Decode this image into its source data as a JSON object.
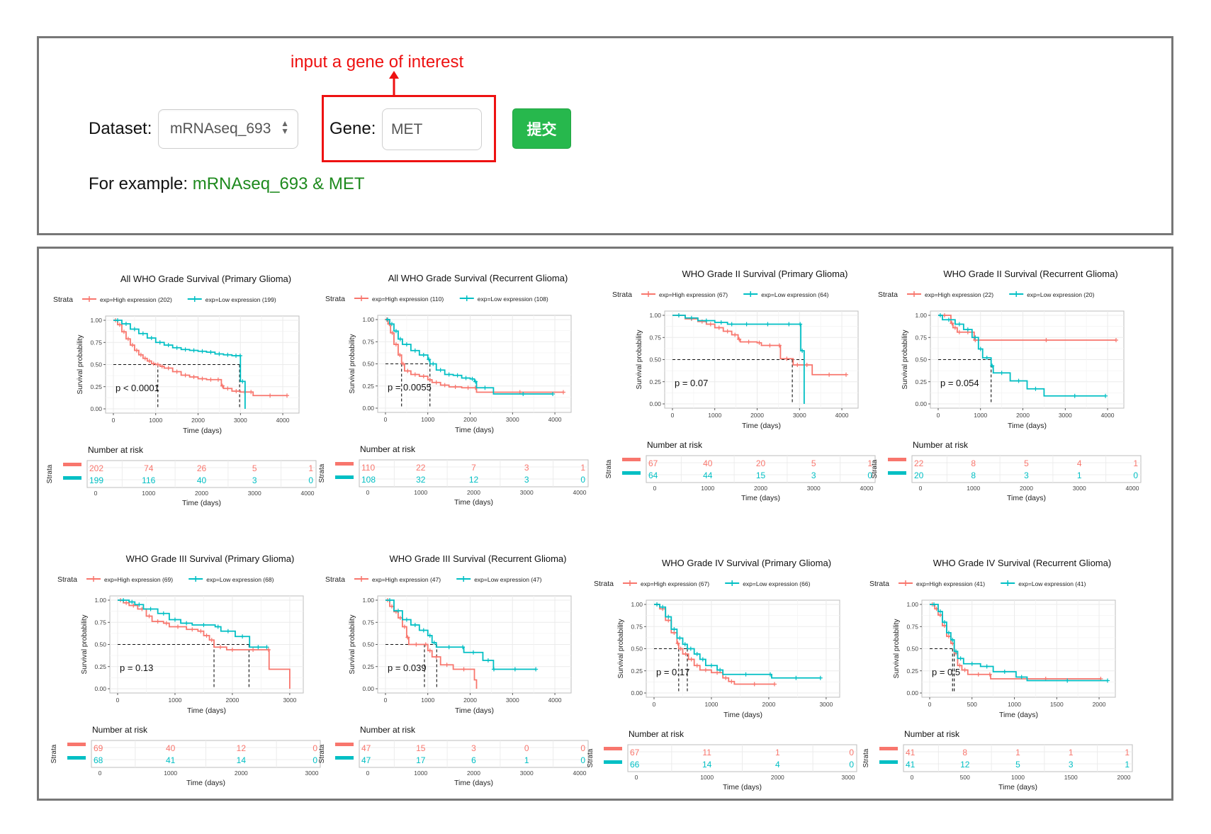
{
  "form": {
    "annotation": "input a gene of interest",
    "dataset_label": "Dataset:",
    "dataset_value": "mRNAseq_693",
    "gene_label": "Gene:",
    "gene_value": "MET",
    "submit_label": "提交",
    "example_prefix": "For example:",
    "example_value": "mRNAseq_693 & MET"
  },
  "colors": {
    "high": "#F8766D",
    "low": "#00BFC4",
    "annotation": "#EE1111",
    "submit": "#27B84D",
    "example": "#1E8A1E"
  },
  "common": {
    "strata_label": "Strata",
    "ylabel": "Survival probability",
    "xlabel": "Time (days)",
    "risk_title": "Number at risk",
    "yticks": [
      "0.00",
      "0.25",
      "0.50",
      "0.75",
      "1.00"
    ]
  },
  "chart_data": [
    {
      "type": "line",
      "title": "All WHO Grade Survival (Primary Glioma)",
      "legend": [
        "exp=High expression (202)",
        "exp=Low expression (199)"
      ],
      "xlim": [
        0,
        4200
      ],
      "ylim": [
        0,
        1
      ],
      "xticks": [
        0,
        1000,
        2000,
        3000,
        4000
      ],
      "pvalue": "p < 0.0001",
      "median": [
        1050,
        2980
      ],
      "series": [
        {
          "name": "exp=High expression (202)",
          "x": [
            0,
            100,
            200,
            300,
            400,
            500,
            600,
            700,
            800,
            900,
            1000,
            1100,
            1200,
            1400,
            1600,
            1800,
            2000,
            2200,
            2400,
            2550,
            2600,
            2800,
            3000,
            3200,
            3300,
            4100
          ],
          "y": [
            1.0,
            0.95,
            0.87,
            0.79,
            0.72,
            0.66,
            0.61,
            0.57,
            0.54,
            0.51,
            0.5,
            0.48,
            0.46,
            0.42,
            0.38,
            0.36,
            0.34,
            0.33,
            0.33,
            0.26,
            0.23,
            0.2,
            0.19,
            0.19,
            0.15,
            0.15
          ]
        },
        {
          "name": "exp=Low expression (199)",
          "x": [
            0,
            200,
            400,
            600,
            800,
            1000,
            1200,
            1400,
            1600,
            1800,
            2000,
            2200,
            2400,
            2600,
            2800,
            2990,
            3000,
            3100,
            3110
          ],
          "y": [
            1.0,
            0.96,
            0.9,
            0.85,
            0.8,
            0.75,
            0.72,
            0.69,
            0.67,
            0.66,
            0.65,
            0.64,
            0.62,
            0.61,
            0.6,
            0.6,
            0.31,
            0.31,
            0.0
          ]
        }
      ],
      "risk": {
        "x": [
          0,
          1000,
          2000,
          3000,
          4000
        ],
        "high": [
          "202",
          "74",
          "26",
          "5",
          "1"
        ],
        "low": [
          "199",
          "116",
          "40",
          "3",
          "0"
        ]
      }
    },
    {
      "type": "line",
      "title": "All WHO Grade Survival (Recurrent Glioma)",
      "legend": [
        "exp=High expression (110)",
        "exp=Low expression (108)"
      ],
      "xlim": [
        0,
        4200
      ],
      "ylim": [
        0,
        1
      ],
      "xticks": [
        0,
        1000,
        2000,
        3000,
        4000
      ],
      "pvalue": "p = 0.0055",
      "median": [
        380,
        1050
      ],
      "series": [
        {
          "name": "exp=High expression (110)",
          "x": [
            0,
            60,
            120,
            200,
            300,
            380,
            450,
            600,
            800,
            1000,
            1100,
            1300,
            1500,
            1800,
            2100,
            2150,
            4200
          ],
          "y": [
            1.0,
            0.95,
            0.85,
            0.72,
            0.6,
            0.5,
            0.42,
            0.38,
            0.36,
            0.32,
            0.29,
            0.26,
            0.24,
            0.23,
            0.23,
            0.18,
            0.18
          ]
        },
        {
          "name": "exp=Low expression (108)",
          "x": [
            0,
            100,
            200,
            300,
            400,
            600,
            800,
            1000,
            1050,
            1200,
            1400,
            1600,
            1800,
            2000,
            2100,
            2150,
            2550,
            3950
          ],
          "y": [
            1.0,
            0.95,
            0.87,
            0.78,
            0.72,
            0.65,
            0.6,
            0.55,
            0.5,
            0.43,
            0.38,
            0.37,
            0.34,
            0.33,
            0.3,
            0.23,
            0.16,
            0.16
          ]
        }
      ],
      "risk": {
        "x": [
          0,
          1000,
          2000,
          3000,
          4000
        ],
        "high": [
          "110",
          "22",
          "7",
          "3",
          "1"
        ],
        "low": [
          "108",
          "32",
          "12",
          "3",
          "0"
        ]
      }
    },
    {
      "type": "line",
      "title": "WHO Grade II Survival (Primary Glioma)",
      "legend": [
        "exp=High expression (67)",
        "exp=Low expression (64)"
      ],
      "xlim": [
        0,
        4200
      ],
      "ylim": [
        0,
        1
      ],
      "xticks": [
        0,
        1000,
        2000,
        3000,
        4000
      ],
      "pvalue": "p = 0.07",
      "median": [
        2830,
        3110
      ],
      "series": [
        {
          "name": "exp=High expression (67)",
          "x": [
            0,
            300,
            600,
            800,
            1000,
            1200,
            1400,
            1550,
            1600,
            2000,
            2100,
            2500,
            2550,
            2850,
            3050,
            3300,
            4100
          ],
          "y": [
            1.0,
            0.96,
            0.93,
            0.9,
            0.86,
            0.82,
            0.78,
            0.73,
            0.7,
            0.69,
            0.66,
            0.66,
            0.51,
            0.44,
            0.44,
            0.33,
            0.33
          ]
        },
        {
          "name": "exp=Low expression (64)",
          "x": [
            0,
            300,
            600,
            1000,
            1300,
            1500,
            2000,
            2500,
            3000,
            3030,
            3100,
            3110
          ],
          "y": [
            1.0,
            0.97,
            0.94,
            0.92,
            0.9,
            0.9,
            0.9,
            0.9,
            0.9,
            0.6,
            0.6,
            0.0
          ]
        }
      ],
      "risk": {
        "x": [
          0,
          1000,
          2000,
          3000,
          4000
        ],
        "high": [
          "67",
          "40",
          "20",
          "5",
          "1"
        ],
        "low": [
          "64",
          "44",
          "15",
          "3",
          "0"
        ]
      }
    },
    {
      "type": "line",
      "title": "WHO Grade II Survival (Recurrent Glioma)",
      "legend": [
        "exp=High expression (22)",
        "exp=Low expression (20)"
      ],
      "xlim": [
        0,
        4200
      ],
      "ylim": [
        0,
        1
      ],
      "xticks": [
        0,
        1000,
        2000,
        3000,
        4000
      ],
      "pvalue": "p = 0.054",
      "median": [
        1250
      ],
      "series": [
        {
          "name": "exp=High expression (22)",
          "x": [
            0,
            300,
            350,
            450,
            550,
            850,
            900,
            4200
          ],
          "y": [
            1.0,
            0.91,
            0.86,
            0.81,
            0.81,
            0.72,
            0.72,
            0.72
          ]
        },
        {
          "name": "exp=Low expression (20)",
          "x": [
            0,
            100,
            400,
            600,
            800,
            950,
            1050,
            1250,
            1300,
            1700,
            2100,
            2500,
            3950
          ],
          "y": [
            1.0,
            0.95,
            0.9,
            0.84,
            0.75,
            0.62,
            0.52,
            0.43,
            0.35,
            0.26,
            0.17,
            0.09,
            0.09
          ]
        }
      ],
      "risk": {
        "x": [
          0,
          1000,
          2000,
          3000,
          4000
        ],
        "high": [
          "22",
          "8",
          "5",
          "4",
          "1"
        ],
        "low": [
          "20",
          "8",
          "3",
          "1",
          "0"
        ]
      }
    },
    {
      "type": "line",
      "title": "WHO Grade III Survival (Primary Glioma)",
      "legend": [
        "exp=High expression (69)",
        "exp=Low expression (68)"
      ],
      "xlim": [
        0,
        3100
      ],
      "ylim": [
        0,
        1
      ],
      "xticks": [
        0,
        1000,
        2000,
        3000
      ],
      "pvalue": "p = 0.13",
      "median": [
        1680,
        2290
      ],
      "series": [
        {
          "name": "exp=High expression (69)",
          "x": [
            0,
            100,
            200,
            350,
            500,
            600,
            800,
            900,
            1200,
            1400,
            1500,
            1600,
            1680,
            1900,
            2100,
            2620,
            2640,
            3000
          ],
          "y": [
            1.0,
            0.97,
            0.94,
            0.9,
            0.82,
            0.76,
            0.74,
            0.7,
            0.67,
            0.65,
            0.6,
            0.55,
            0.47,
            0.44,
            0.44,
            0.44,
            0.22,
            0.0
          ]
        },
        {
          "name": "exp=Low expression (68)",
          "x": [
            0,
            200,
            300,
            450,
            700,
            900,
            1100,
            1300,
            1700,
            1800,
            2050,
            2300,
            2600
          ],
          "y": [
            1.0,
            0.98,
            0.95,
            0.9,
            0.85,
            0.78,
            0.74,
            0.72,
            0.7,
            0.65,
            0.59,
            0.47,
            0.47
          ]
        }
      ],
      "risk": {
        "x": [
          0,
          1000,
          2000,
          3000
        ],
        "high": [
          "69",
          "40",
          "12",
          "0"
        ],
        "low": [
          "68",
          "41",
          "14",
          "0"
        ]
      }
    },
    {
      "type": "line",
      "title": "WHO Grade III Survival (Recurrent Glioma)",
      "legend": [
        "exp=High expression (47)",
        "exp=Low expression (47)"
      ],
      "xlim": [
        0,
        4200
      ],
      "ylim": [
        0,
        1
      ],
      "xticks": [
        0,
        1000,
        2000,
        3000,
        4000
      ],
      "pvalue": "p = 0.039",
      "median": [
        920,
        1210
      ],
      "series": [
        {
          "name": "exp=High expression (47)",
          "x": [
            0,
            100,
            200,
            300,
            400,
            500,
            550,
            900,
            1000,
            1100,
            1300,
            1600,
            2100,
            2150
          ],
          "y": [
            1.0,
            0.93,
            0.87,
            0.8,
            0.7,
            0.58,
            0.5,
            0.5,
            0.43,
            0.36,
            0.27,
            0.22,
            0.1,
            0.0
          ]
        },
        {
          "name": "exp=Low expression (47)",
          "x": [
            0,
            200,
            400,
            600,
            800,
            1000,
            1100,
            1200,
            1800,
            1850,
            2300,
            2550,
            2570,
            3550
          ],
          "y": [
            1.0,
            0.88,
            0.78,
            0.72,
            0.66,
            0.6,
            0.52,
            0.47,
            0.47,
            0.41,
            0.32,
            0.22,
            0.22,
            0.22
          ]
        }
      ],
      "risk": {
        "x": [
          0,
          1000,
          2000,
          3000,
          4000
        ],
        "high": [
          "47",
          "15",
          "3",
          "0",
          "0"
        ],
        "low": [
          "47",
          "17",
          "6",
          "1",
          "0"
        ]
      }
    },
    {
      "type": "line",
      "title": "WHO Grade IV Survival (Primary Glioma)",
      "legend": [
        "exp=High expression (67)",
        "exp=Low expression (66)"
      ],
      "xlim": [
        0,
        3100
      ],
      "ylim": [
        0,
        1
      ],
      "xticks": [
        0,
        1000,
        2000,
        3000
      ],
      "pvalue": "p = 0.17",
      "median": [
        430,
        580
      ],
      "series": [
        {
          "name": "exp=High expression (67)",
          "x": [
            0,
            100,
            200,
            300,
            400,
            430,
            500,
            600,
            700,
            800,
            1000,
            1200,
            1300,
            1400,
            2100
          ],
          "y": [
            1.0,
            0.95,
            0.82,
            0.68,
            0.56,
            0.5,
            0.44,
            0.38,
            0.31,
            0.26,
            0.23,
            0.17,
            0.13,
            0.1,
            0.1
          ]
        },
        {
          "name": "exp=Low expression (66)",
          "x": [
            0,
            100,
            200,
            300,
            400,
            500,
            580,
            700,
            800,
            900,
            1100,
            1200,
            2000,
            2050,
            2900
          ],
          "y": [
            1.0,
            0.97,
            0.86,
            0.72,
            0.62,
            0.55,
            0.5,
            0.44,
            0.38,
            0.31,
            0.26,
            0.21,
            0.21,
            0.17,
            0.17
          ]
        }
      ],
      "risk": {
        "x": [
          0,
          1000,
          2000,
          3000
        ],
        "high": [
          "67",
          "11",
          "1",
          "0"
        ],
        "low": [
          "66",
          "14",
          "4",
          "0"
        ]
      }
    },
    {
      "type": "line",
      "title": "WHO Grade IV Survival (Recurrent Glioma)",
      "legend": [
        "exp=High expression (41)",
        "exp=Low expression (41)"
      ],
      "xlim": [
        0,
        2100
      ],
      "ylim": [
        0,
        1
      ],
      "xticks": [
        0,
        500,
        1000,
        1500,
        2000
      ],
      "pvalue": "p = 0.5",
      "median": [
        270,
        290
      ],
      "series": [
        {
          "name": "exp=High expression (41)",
          "x": [
            0,
            60,
            100,
            150,
            200,
            250,
            290,
            330,
            380,
            450,
            700,
            720,
            2020
          ],
          "y": [
            1.0,
            0.95,
            0.88,
            0.76,
            0.64,
            0.56,
            0.45,
            0.31,
            0.26,
            0.21,
            0.21,
            0.16,
            0.16
          ]
        },
        {
          "name": "exp=Low expression (41)",
          "x": [
            0,
            100,
            150,
            200,
            250,
            290,
            330,
            400,
            600,
            750,
            1020,
            1150,
            2100
          ],
          "y": [
            1.0,
            0.92,
            0.8,
            0.68,
            0.6,
            0.47,
            0.39,
            0.33,
            0.3,
            0.24,
            0.18,
            0.14,
            0.14
          ]
        }
      ],
      "risk": {
        "x": [
          0,
          500,
          1000,
          1500,
          2000
        ],
        "high": [
          "41",
          "8",
          "1",
          "1",
          "1"
        ],
        "low": [
          "41",
          "12",
          "5",
          "3",
          "1"
        ]
      }
    }
  ]
}
